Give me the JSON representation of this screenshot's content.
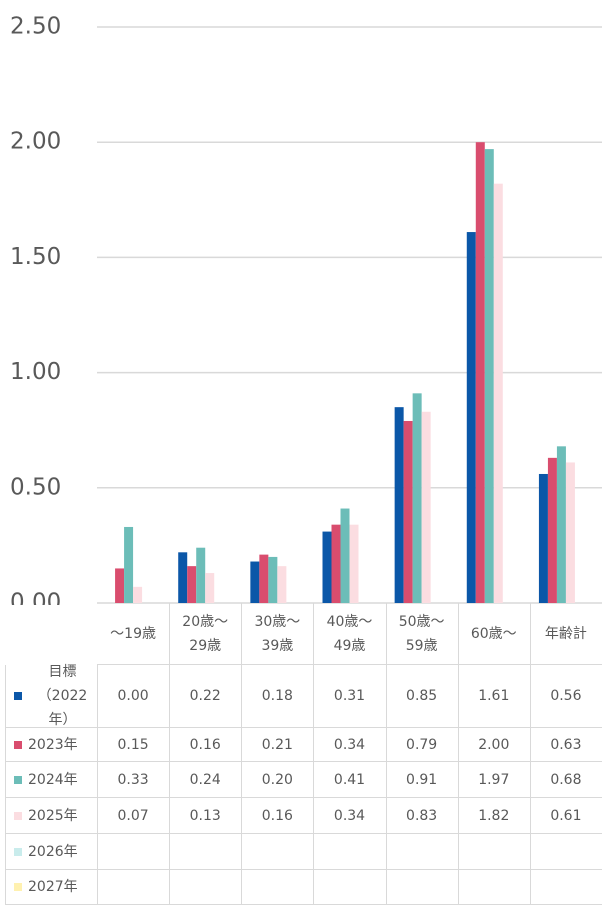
{
  "chart_data": {
    "type": "bar",
    "categories": [
      "～19歳",
      "20歳～\n29歳",
      "30歳～\n39歳",
      "40歳～\n49歳",
      "50歳～\n59歳",
      "60歳～",
      "年齢計"
    ],
    "series": [
      {
        "name": "目標\n（2022年）",
        "color": "#0b57a8",
        "values": [
          0,
          0.22,
          0.18,
          0.31,
          0.85,
          1.61,
          0.56
        ],
        "value_labels": [
          "0.00",
          "0.22",
          "0.18",
          "0.31",
          "0.85",
          "1.61",
          "0.56"
        ]
      },
      {
        "name": "2023年",
        "color": "#d94d6e",
        "values": [
          0.15,
          0.16,
          0.21,
          0.34,
          0.79,
          2,
          0.63
        ],
        "value_labels": [
          "0.15",
          "0.16",
          "0.21",
          "0.34",
          "0.79",
          "2.00",
          "0.63"
        ]
      },
      {
        "name": "2024年",
        "color": "#6cbdb8",
        "values": [
          0.33,
          0.24,
          0.2,
          0.41,
          0.91,
          1.97,
          0.68
        ],
        "value_labels": [
          "0.33",
          "0.24",
          "0.20",
          "0.41",
          "0.91",
          "1.97",
          "0.68"
        ]
      },
      {
        "name": "2025年",
        "color": "#fbdde1",
        "values": [
          0.07,
          0.13,
          0.16,
          0.34,
          0.83,
          1.82,
          0.61
        ],
        "value_labels": [
          "0.07",
          "0.13",
          "0.16",
          "0.34",
          "0.83",
          "1.82",
          "0.61"
        ]
      },
      {
        "name": "2026年",
        "color": "#c9ecec",
        "values": [
          null,
          null,
          null,
          null,
          null,
          null,
          null
        ]
      },
      {
        "name": "2027年",
        "color": "#fff1b0",
        "values": [
          null,
          null,
          null,
          null,
          null,
          null,
          null
        ]
      }
    ],
    "ylim": [
      0,
      2.5
    ],
    "yticks": [
      {
        "value": 0,
        "label": "0.00"
      },
      {
        "value": 0.5,
        "label": "0.50"
      },
      {
        "value": 1,
        "label": "1.00"
      },
      {
        "value": 1.5,
        "label": "1.50"
      },
      {
        "value": 2,
        "label": "2.00"
      },
      {
        "value": 2.5,
        "label": "2.50"
      }
    ],
    "grid": true
  }
}
